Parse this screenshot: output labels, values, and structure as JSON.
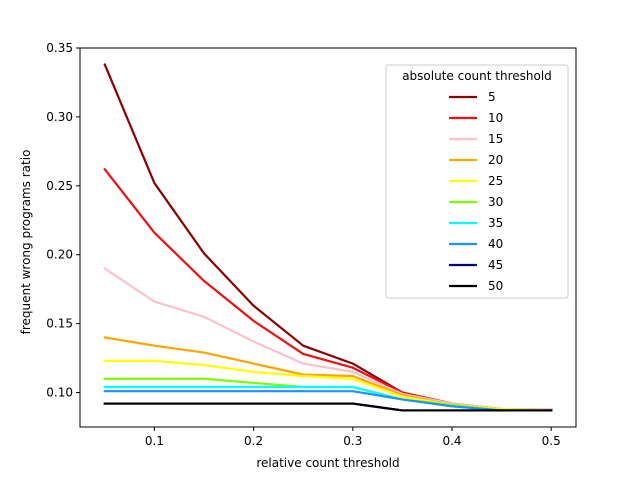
{
  "chart_data": {
    "type": "line",
    "title": "",
    "xlabel": "relative count threshold",
    "ylabel": "frequent wrong programs ratio",
    "xlim": [
      0.025,
      0.525
    ],
    "ylim": [
      0.075,
      0.35
    ],
    "xticks": [
      0.1,
      0.2,
      0.3,
      0.4,
      0.5
    ],
    "xtick_labels": [
      "0.1",
      "0.2",
      "0.3",
      "0.4",
      "0.5"
    ],
    "yticks": [
      0.1,
      0.15,
      0.2,
      0.25,
      0.3,
      0.35
    ],
    "ytick_labels": [
      "0.10",
      "0.15",
      "0.20",
      "0.25",
      "0.30",
      "0.35"
    ],
    "grid": false,
    "legend": {
      "title": "absolute count threshold",
      "placement": "top-right"
    },
    "x": [
      0.05,
      0.1,
      0.15,
      0.2,
      0.25,
      0.3,
      0.35,
      0.4,
      0.45,
      0.5
    ],
    "series": [
      {
        "name": "5",
        "color": "#8b0000",
        "values": [
          0.338,
          0.252,
          0.201,
          0.163,
          0.134,
          0.121,
          0.1,
          0.092,
          0.088,
          0.088
        ]
      },
      {
        "name": "10",
        "color": "#ee1111",
        "values": [
          0.262,
          0.216,
          0.181,
          0.152,
          0.128,
          0.118,
          0.1,
          0.092,
          0.088,
          0.088
        ]
      },
      {
        "name": "15",
        "color": "#ffc0cb",
        "values": [
          0.19,
          0.166,
          0.155,
          0.137,
          0.121,
          0.115,
          0.099,
          0.092,
          0.088,
          0.088
        ]
      },
      {
        "name": "20",
        "color": "#ffa500",
        "values": [
          0.14,
          0.134,
          0.129,
          0.121,
          0.113,
          0.112,
          0.098,
          0.091,
          0.088,
          0.087
        ]
      },
      {
        "name": "25",
        "color": "#ffff00",
        "values": [
          0.123,
          0.123,
          0.12,
          0.115,
          0.112,
          0.11,
          0.097,
          0.091,
          0.088,
          0.087
        ]
      },
      {
        "name": "30",
        "color": "#7cfc00",
        "values": [
          0.11,
          0.11,
          0.11,
          0.107,
          0.104,
          0.104,
          0.095,
          0.091,
          0.087,
          0.087
        ]
      },
      {
        "name": "35",
        "color": "#00ffff",
        "values": [
          0.104,
          0.104,
          0.104,
          0.104,
          0.104,
          0.104,
          0.095,
          0.09,
          0.087,
          0.087
        ]
      },
      {
        "name": "40",
        "color": "#1e90ff",
        "values": [
          0.101,
          0.101,
          0.101,
          0.101,
          0.101,
          0.101,
          0.095,
          0.09,
          0.087,
          0.087
        ]
      },
      {
        "name": "45",
        "color": "#000080",
        "values": [
          0.092,
          0.092,
          0.092,
          0.092,
          0.092,
          0.092,
          0.087,
          0.087,
          0.087,
          0.087
        ]
      },
      {
        "name": "50",
        "color": "#000000",
        "values": [
          0.092,
          0.092,
          0.092,
          0.092,
          0.092,
          0.092,
          0.087,
          0.087,
          0.087,
          0.087
        ]
      }
    ]
  }
}
